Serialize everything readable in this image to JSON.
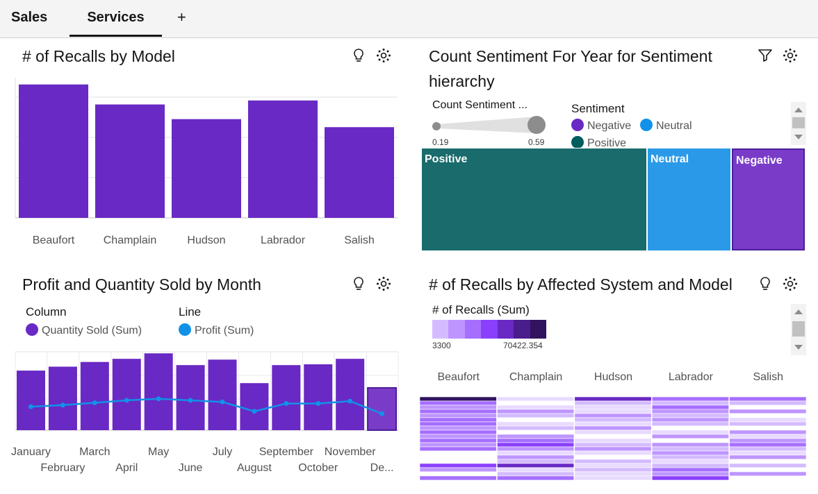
{
  "tabs": [
    {
      "label": "Sales"
    },
    {
      "label": "Services"
    }
  ],
  "add_tab_label": "+",
  "widgets": {
    "recalls_by_model": {
      "title": "# of Recalls by Model",
      "icons": [
        "lightbulb-icon",
        "settings-icon"
      ]
    },
    "sentiment": {
      "title_line1": "Count Sentiment For Year for Sentiment",
      "title_line2": "hierarchy",
      "icons": [
        "filter-icon",
        "settings-icon"
      ],
      "size_legend_title": "Count Sentiment ...",
      "size_min": "0.19",
      "size_max": "0.59",
      "color_legend_title": "Sentiment",
      "legend": [
        {
          "label": "Negative",
          "color": "#6929c4"
        },
        {
          "label": "Neutral",
          "color": "#1192e8"
        },
        {
          "label": "Positive",
          "color": "#005d5d"
        }
      ]
    },
    "profit_quantity": {
      "title": "Profit and Quantity Sold by Month",
      "icons": [
        "lightbulb-icon",
        "settings-icon"
      ],
      "legend_column_title": "Column",
      "legend_column_item": "Quantity Sold (Sum)",
      "legend_line_title": "Line",
      "legend_line_item": "Profit (Sum)"
    },
    "recalls_by_system": {
      "title": "# of Recalls by Affected System and Model",
      "icons": [
        "lightbulb-icon",
        "settings-icon"
      ],
      "legend_title": "# of Recalls (Sum)",
      "legend_min": "3300",
      "legend_max": "70422.354",
      "scale_colors": [
        "#e8daff",
        "#d4bbff",
        "#be95ff",
        "#a56eff",
        "#8a3ffc",
        "#6929c4",
        "#491d8b",
        "#31135e"
      ]
    }
  },
  "chart_data": [
    {
      "type": "bar",
      "title": "# of Recalls by Model",
      "categories": [
        "Beaufort",
        "Champlain",
        "Hudson",
        "Labrador",
        "Salish"
      ],
      "values": [
        100,
        85,
        74,
        88,
        68
      ],
      "ylim": [
        0,
        110
      ],
      "grid": true,
      "color": "#6929c4"
    },
    {
      "type": "treemap",
      "title": "Count Sentiment For Year for Sentiment hierarchy",
      "categories": [
        "Positive",
        "Neutral",
        "Negative"
      ],
      "values": [
        0.59,
        0.22,
        0.19
      ],
      "colors": [
        "#1a6b6b",
        "#2a9ae8",
        "#7a3cc8"
      ]
    },
    {
      "type": "bar",
      "title": "Profit and Quantity Sold by Month",
      "categories": [
        "January",
        "February",
        "March",
        "April",
        "May",
        "June",
        "July",
        "August",
        "September",
        "October",
        "November",
        "De..."
      ],
      "series": [
        {
          "name": "Quantity Sold (Sum)",
          "kind": "column",
          "values": [
            76,
            81,
            87,
            91,
            98,
            83,
            90,
            60,
            83,
            84,
            91,
            54
          ],
          "color": "#6929c4"
        },
        {
          "name": "Profit (Sum)",
          "kind": "line",
          "values": [
            30,
            32,
            35,
            38,
            40,
            38,
            36,
            24,
            34,
            34,
            37,
            21
          ],
          "color": "#1192e8"
        }
      ],
      "ylim": [
        0,
        100
      ],
      "grid": true
    },
    {
      "type": "heatmap",
      "title": "# of Recalls by Affected System and Model",
      "columns": [
        "Beaufort",
        "Champlain",
        "Hudson",
        "Labrador",
        "Salish"
      ],
      "value_range": [
        3300,
        70422.354
      ],
      "rows_levels": [
        [
          7,
          1,
          6,
          4,
          4
        ],
        [
          4,
          0,
          2,
          2,
          2
        ],
        [
          3,
          1,
          1,
          4,
          0
        ],
        [
          4,
          3,
          1,
          3,
          3
        ],
        [
          3,
          2,
          3,
          2,
          0
        ],
        [
          4,
          0,
          2,
          3,
          1
        ],
        [
          4,
          1,
          1,
          2,
          2
        ],
        [
          3,
          2,
          3,
          0,
          0
        ],
        [
          4,
          0,
          1,
          1,
          3
        ],
        [
          3,
          3,
          0,
          3,
          1
        ],
        [
          4,
          4,
          1,
          0,
          3
        ],
        [
          3,
          5,
          2,
          3,
          4
        ],
        [
          4,
          3,
          3,
          2,
          2
        ],
        [
          0,
          1,
          1,
          3,
          1
        ],
        [
          0,
          3,
          0,
          2,
          3
        ],
        [
          0,
          2,
          2,
          1,
          0
        ],
        [
          5,
          6,
          1,
          2,
          2
        ],
        [
          3,
          1,
          2,
          4,
          0
        ],
        [
          0,
          2,
          1,
          3,
          3
        ],
        [
          4,
          4,
          1,
          5,
          0
        ]
      ]
    }
  ]
}
